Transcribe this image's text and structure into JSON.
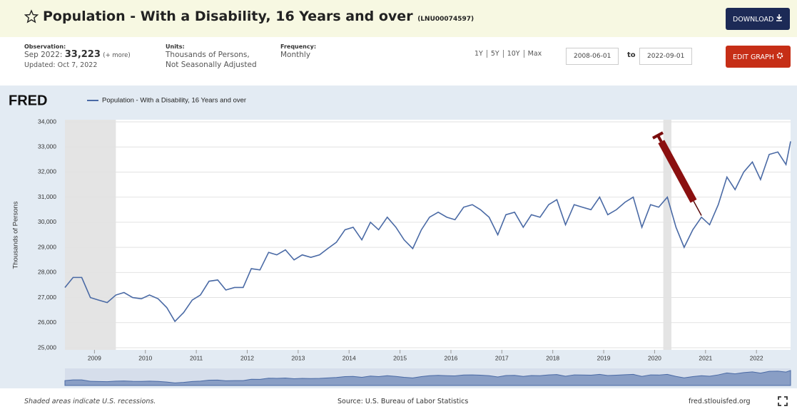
{
  "header": {
    "title": "Population - With a Disability, 16 Years and over",
    "series_id": "(LNU00074597)",
    "download": "DOWNLOAD"
  },
  "info": {
    "observation_label": "Observation:",
    "observation_date": "Sep 2022:",
    "observation_value": "33,223",
    "more": "(+ more)",
    "updated": "Updated: Oct 7, 2022",
    "units_label": "Units:",
    "units": [
      "Thousands of Persons,",
      "Not Seasonally Adjusted"
    ],
    "frequency_label": "Frequency:",
    "frequency": "Monthly",
    "ranges": [
      "1Y",
      "5Y",
      "10Y",
      "Max"
    ],
    "start_date": "2008-06-01",
    "to": "to",
    "end_date": "2022-09-01",
    "edit_graph": "EDIT GRAPH"
  },
  "chart_data": {
    "type": "line",
    "logo": "FRED",
    "y_label": "Thousands of Persons",
    "x": [
      2008.42,
      2008.58,
      2008.75,
      2008.92,
      2009.08,
      2009.25,
      2009.42,
      2009.58,
      2009.75,
      2009.92,
      2010.08,
      2010.25,
      2010.42,
      2010.58,
      2010.75,
      2010.92,
      2011.08,
      2011.25,
      2011.42,
      2011.58,
      2011.75,
      2011.92,
      2012.08,
      2012.25,
      2012.42,
      2012.58,
      2012.75,
      2012.92,
      2013.08,
      2013.25,
      2013.42,
      2013.58,
      2013.75,
      2013.92,
      2014.08,
      2014.25,
      2014.42,
      2014.58,
      2014.75,
      2014.92,
      2015.08,
      2015.25,
      2015.42,
      2015.58,
      2015.75,
      2015.92,
      2016.08,
      2016.25,
      2016.42,
      2016.58,
      2016.75,
      2016.92,
      2017.08,
      2017.25,
      2017.42,
      2017.58,
      2017.75,
      2017.92,
      2018.08,
      2018.25,
      2018.42,
      2018.58,
      2018.75,
      2018.92,
      2019.08,
      2019.25,
      2019.42,
      2019.58,
      2019.75,
      2019.92,
      2020.08,
      2020.25,
      2020.42,
      2020.58,
      2020.75,
      2020.92,
      2021.08,
      2021.25,
      2021.42,
      2021.58,
      2021.75,
      2021.92,
      2022.08,
      2022.25,
      2022.42,
      2022.58,
      2022.67
    ],
    "series": [
      {
        "name": "Population - With a Disability, 16 Years and over",
        "color": "#4a6aa5",
        "values": [
          27400,
          27800,
          27800,
          27000,
          26900,
          26800,
          27100,
          27200,
          27000,
          26950,
          27100,
          26950,
          26600,
          26050,
          26400,
          26900,
          27100,
          27650,
          27700,
          27300,
          27400,
          27400,
          28150,
          28100,
          28800,
          28700,
          28900,
          28500,
          28700,
          28600,
          28700,
          28950,
          29200,
          29700,
          29800,
          29300,
          30000,
          29700,
          30200,
          29800,
          29300,
          28950,
          29700,
          30200,
          30400,
          30200,
          30100,
          30600,
          30700,
          30500,
          30200,
          29500,
          30300,
          30400,
          29800,
          30300,
          30200,
          30700,
          30900,
          29900,
          30700,
          30600,
          30500,
          31000,
          30300,
          30500,
          30800,
          31000,
          29800,
          30700,
          30600,
          31000,
          29800,
          29000,
          29700,
          30200,
          29900,
          30700,
          31800,
          31300,
          32000,
          32400,
          31700,
          32700,
          32800,
          32300,
          33223
        ]
      }
    ],
    "xlim": [
      2008.42,
      2022.67
    ],
    "xticks": [
      2009,
      2010,
      2011,
      2012,
      2013,
      2014,
      2015,
      2016,
      2017,
      2018,
      2019,
      2020,
      2021,
      2022
    ],
    "ylim": [
      25000,
      34000
    ],
    "yticks": [
      {
        "value": 25000,
        "label": "25,000"
      },
      {
        "value": 26000,
        "label": "26,000"
      },
      {
        "value": 27000,
        "label": "27,000"
      },
      {
        "value": 28000,
        "label": "28,000"
      },
      {
        "value": 29000,
        "label": "29,000"
      },
      {
        "value": 30000,
        "label": "30,000"
      },
      {
        "value": 31000,
        "label": "31,000"
      },
      {
        "value": 32000,
        "label": "32,000"
      },
      {
        "value": 33000,
        "label": "33,000"
      },
      {
        "value": 34000,
        "label": "34,000"
      }
    ],
    "recessions": [
      [
        2008.42,
        2009.42
      ],
      [
        2020.17,
        2020.33
      ]
    ],
    "recession_color": "#e4e4e4",
    "grid": true
  },
  "footer": {
    "note": "Shaded areas indicate U.S. recessions.",
    "source": "Source: U.S. Bureau of Labor Statistics",
    "site": "fred.stlouisfed.org"
  }
}
